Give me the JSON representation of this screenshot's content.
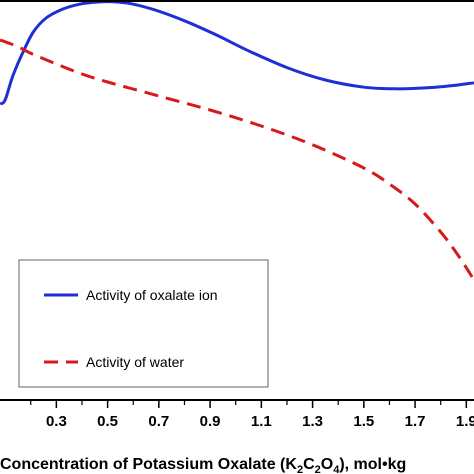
{
  "chart_data": {
    "type": "line",
    "xlabel": {
      "prefix": "Concentration of Potassium Oxalate (K",
      "sub1": "2",
      "mid1": "C",
      "sub2": "2",
      "mid2": "O",
      "sub3": "4",
      "suffix": "), mol•kg"
    },
    "xlim": [
      0.08,
      1.93
    ],
    "ylim": [
      0,
      1
    ],
    "x_ticks": [
      0.3,
      0.5,
      0.7,
      0.9,
      1.1,
      1.3,
      1.5,
      1.7,
      1.9
    ],
    "x_tick_labels": [
      "0.3",
      "0.5",
      "0.7",
      "0.9",
      "1.1",
      "1.3",
      "1.5",
      "1.7",
      "1.9"
    ],
    "grid": false,
    "legend": {
      "position": "bottom-left"
    },
    "series": [
      {
        "name": "Activity of oxalate ion",
        "color": "#1f2fd6",
        "style": "solid",
        "x": [
          0.08,
          0.1,
          0.13,
          0.17,
          0.21,
          0.26,
          0.32,
          0.38,
          0.44,
          0.5,
          0.58,
          0.68,
          0.8,
          0.92,
          1.05,
          1.2,
          1.35,
          1.5,
          1.62,
          1.7,
          1.78,
          1.86,
          1.93
        ],
        "y": [
          0.74,
          0.75,
          0.81,
          0.87,
          0.92,
          0.955,
          0.976,
          0.988,
          0.994,
          0.996,
          0.992,
          0.976,
          0.948,
          0.914,
          0.873,
          0.831,
          0.8,
          0.782,
          0.778,
          0.779,
          0.782,
          0.787,
          0.793
        ]
      },
      {
        "name": "Activity of water",
        "color": "#d61a1a",
        "style": "dashed",
        "x": [
          0.08,
          0.12,
          0.16,
          0.2,
          0.3,
          0.4,
          0.5,
          0.7,
          0.9,
          1.1,
          1.3,
          1.5,
          1.6,
          1.7,
          1.8,
          1.87,
          1.93
        ],
        "y": [
          0.9,
          0.891,
          0.88,
          0.867,
          0.84,
          0.815,
          0.795,
          0.76,
          0.725,
          0.685,
          0.638,
          0.58,
          0.54,
          0.49,
          0.42,
          0.36,
          0.3
        ]
      }
    ]
  }
}
